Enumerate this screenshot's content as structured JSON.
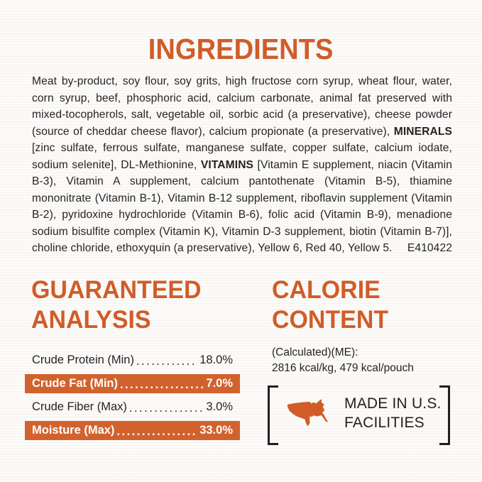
{
  "palette": {
    "orange_heading": "#D15C28",
    "orange_bar": "#D2622D",
    "ink": "#262324"
  },
  "ingredients": {
    "title": "INGREDIENTS",
    "bold_words": [
      "MINERALS",
      "VITAMINS"
    ],
    "lines": [
      "Meat by-product, soy flour, soy grits, high fructose corn syrup, wheat flour, water,",
      "corn syrup, beef, phosphoric acid, calcium carbonate, animal fat preserved with",
      "mixed-tocopherols, salt, vegetable oil, sorbic acid (a preservative), cheese powder",
      "(source of cheddar cheese flavor), calcium propionate (a preservative), MINERALS",
      "[zinc sulfate, ferrous sulfate, manganese sulfate, copper sulfate, calcium iodate,",
      "sodium selenite], DL-Methionine, VITAMINS [Vitamin E supplement, niacin (Vitamin",
      "B-3), Vitamin A supplement, calcium pantothenate (Vitamin B-5), thiamine",
      "mononitrate (Vitamin B-1), Vitamin B-12 supplement, riboflavin supplement (Vitamin",
      "B-2), pyridoxine hydrochloride (Vitamin B-6), folic acid (Vitamin B-9), menadione",
      "sodium bisulfite complex (Vitamin K), Vitamin D-3 supplement, biotin (Vitamin B-7)],"
    ],
    "last_line": "choline chloride, ethoxyquin (a preservative), Yellow 6, Red 40, Yellow 5.",
    "code": "E410422"
  },
  "guaranteed_analysis": {
    "title_line1": "GUARANTEED",
    "title_line2": "ANALYSIS",
    "leader_dots": "................................................................",
    "rows": [
      {
        "label": "Crude Protein (Min)",
        "value": "18.0%",
        "highlight": false
      },
      {
        "label": "Crude Fat (Min)",
        "value": "7.0%",
        "highlight": true
      },
      {
        "label": "Crude Fiber (Max)",
        "value": "3.0%",
        "highlight": false
      },
      {
        "label": "Moisture (Max)",
        "value": "33.0%",
        "highlight": true
      }
    ]
  },
  "calorie_content": {
    "title_line1": "CALORIE",
    "title_line2": "CONTENT",
    "calculated_label": "(Calculated)(ME):",
    "value_line": "2816 kcal/kg, 479 kcal/pouch",
    "badge": {
      "icon": "usa-map-icon",
      "line1": "MADE IN U.S.",
      "line2": "FACILITIES"
    }
  }
}
